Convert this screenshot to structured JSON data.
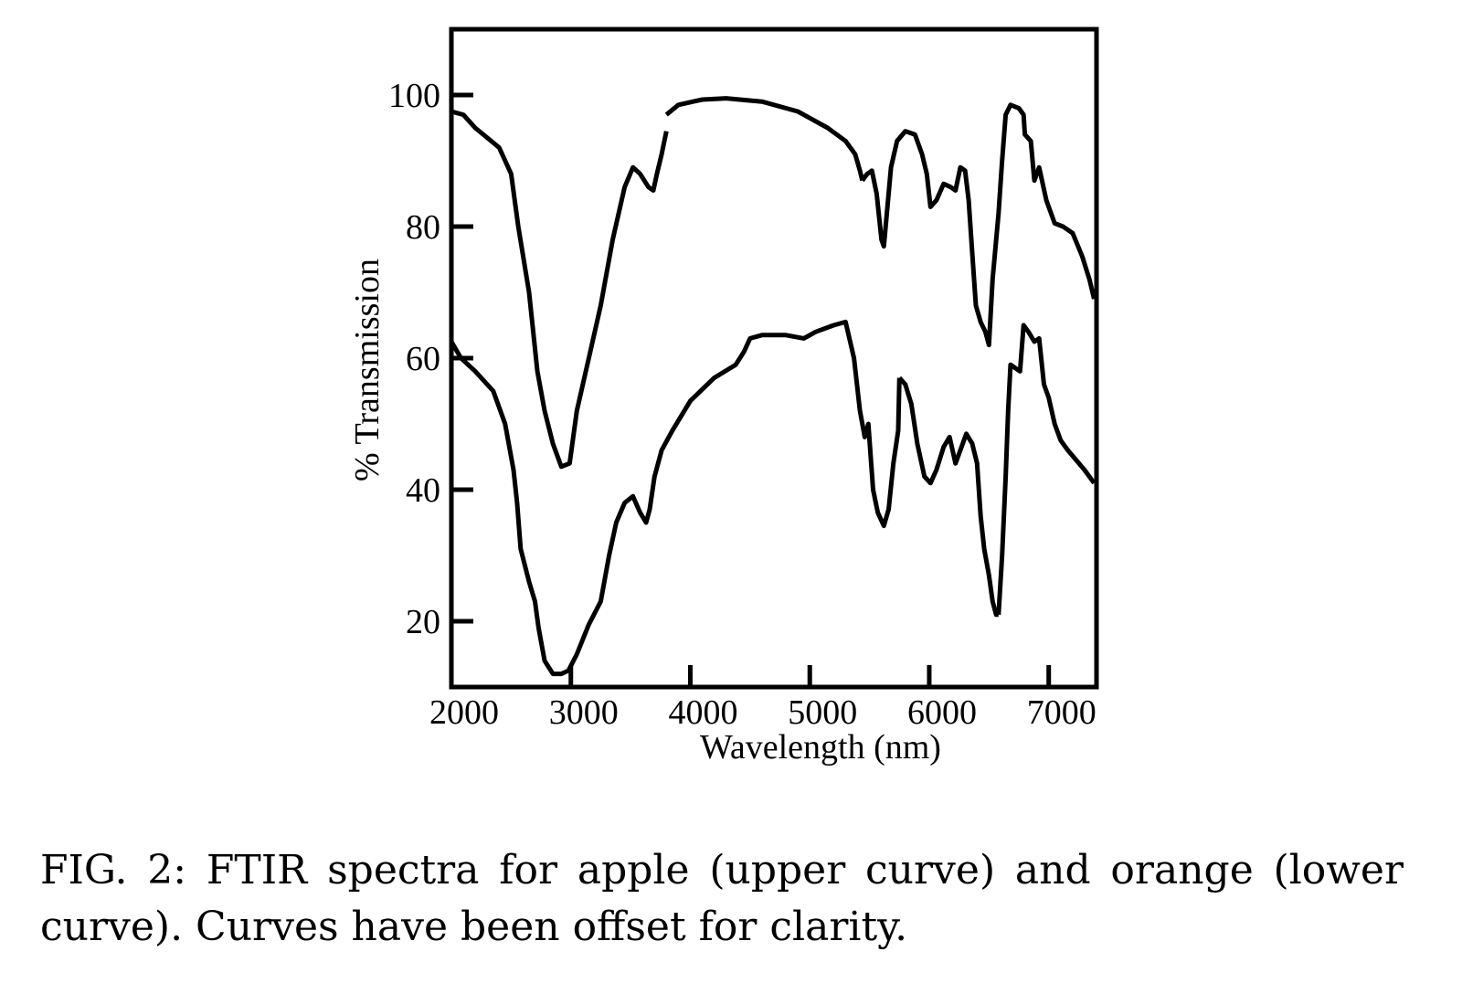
{
  "chart_data": {
    "type": "line",
    "title": "",
    "xlabel": "Wavelength (nm)",
    "ylabel": "% Transmission",
    "xlim": [
      2000,
      7400
    ],
    "ylim": [
      10,
      110
    ],
    "xticks": [
      2000,
      3000,
      4000,
      5000,
      6000,
      7000
    ],
    "yticks": [
      20,
      40,
      60,
      80,
      100
    ],
    "grid": false,
    "legend": "none",
    "series": [
      {
        "name": "apple (upper curve)",
        "segments": [
          [
            [
              2000,
              97.5
            ],
            [
              2100,
              97
            ],
            [
              2200,
              95
            ],
            [
              2400,
              92
            ],
            [
              2500,
              88
            ],
            [
              2560,
              80
            ],
            [
              2650,
              70
            ],
            [
              2720,
              58
            ],
            [
              2780,
              52
            ],
            [
              2850,
              47
            ],
            [
              2920,
              43.5
            ],
            [
              2990,
              44
            ],
            [
              3050,
              52
            ],
            [
              3150,
              60
            ],
            [
              3250,
              68
            ],
            [
              3350,
              78
            ],
            [
              3450,
              86
            ],
            [
              3520,
              89
            ],
            [
              3580,
              88
            ],
            [
              3650,
              86
            ],
            [
              3690,
              85.5
            ],
            [
              3720,
              88
            ],
            [
              3760,
              91
            ],
            [
              3800,
              94.5
            ]
          ],
          [
            [
              3800,
              97
            ],
            [
              3900,
              98.5
            ],
            [
              4100,
              99.3
            ],
            [
              4300,
              99.5
            ],
            [
              4600,
              99
            ],
            [
              4900,
              97.5
            ],
            [
              5150,
              95
            ],
            [
              5300,
              93
            ],
            [
              5380,
              91
            ],
            [
              5420,
              88.5
            ],
            [
              5440,
              87
            ]
          ],
          [
            [
              5440,
              87
            ],
            [
              5480,
              88
            ],
            [
              5520,
              88.5
            ],
            [
              5560,
              85
            ],
            [
              5600,
              78
            ],
            [
              5620,
              77
            ],
            [
              5650,
              83
            ],
            [
              5680,
              89
            ],
            [
              5730,
              93
            ],
            [
              5800,
              94.5
            ],
            [
              5880,
              94
            ],
            [
              5940,
              91
            ],
            [
              5980,
              88
            ],
            [
              6010,
              83
            ],
            [
              6060,
              84
            ],
            [
              6120,
              86.5
            ],
            [
              6180,
              86
            ],
            [
              6220,
              85.5
            ],
            [
              6260,
              89
            ],
            [
              6300,
              88.5
            ],
            [
              6330,
              84
            ],
            [
              6360,
              76
            ],
            [
              6390,
              68
            ],
            [
              6430,
              65.5
            ],
            [
              6470,
              64
            ],
            [
              6500,
              62
            ],
            [
              6530,
              72
            ],
            [
              6580,
              82
            ],
            [
              6610,
              90
            ],
            [
              6640,
              97
            ],
            [
              6680,
              98.5
            ],
            [
              6750,
              98
            ],
            [
              6790,
              97
            ],
            [
              6800,
              94
            ],
            [
              6850,
              93
            ],
            [
              6880,
              87
            ],
            [
              6920,
              89
            ],
            [
              6980,
              84
            ],
            [
              7050,
              80.5
            ],
            [
              7120,
              80
            ],
            [
              7200,
              79
            ],
            [
              7280,
              75.5
            ],
            [
              7340,
              72
            ],
            [
              7380,
              69
            ]
          ]
        ]
      },
      {
        "name": "orange (lower curve)",
        "segments": [
          [
            [
              2000,
              62.5
            ],
            [
              2080,
              60
            ],
            [
              2200,
              58
            ],
            [
              2350,
              55
            ],
            [
              2450,
              50
            ],
            [
              2520,
              43
            ],
            [
              2550,
              38
            ],
            [
              2580,
              31
            ],
            [
              2650,
              26
            ],
            [
              2700,
              23
            ],
            [
              2730,
              19
            ],
            [
              2780,
              14
            ],
            [
              2850,
              12
            ],
            [
              2920,
              12
            ],
            [
              2980,
              12.5
            ],
            [
              3050,
              15
            ],
            [
              3150,
              19.5
            ],
            [
              3250,
              23
            ],
            [
              3320,
              30
            ],
            [
              3380,
              35
            ],
            [
              3450,
              38
            ],
            [
              3520,
              39
            ],
            [
              3580,
              36.5
            ],
            [
              3630,
              35
            ],
            [
              3660,
              37
            ],
            [
              3700,
              42
            ],
            [
              3760,
              46
            ],
            [
              3850,
              49
            ],
            [
              4000,
              53.5
            ],
            [
              4200,
              57
            ],
            [
              4380,
              59
            ],
            [
              4450,
              61
            ],
            [
              4500,
              63
            ],
            [
              4600,
              63.5
            ],
            [
              4800,
              63.5
            ],
            [
              4950,
              63
            ],
            [
              5050,
              64
            ],
            [
              5200,
              65
            ],
            [
              5300,
              65.5
            ],
            [
              5370,
              60
            ],
            [
              5420,
              52
            ],
            [
              5460,
              48
            ],
            [
              5490,
              50
            ],
            [
              5530,
              40
            ],
            [
              5570,
              36.5
            ],
            [
              5620,
              34.5
            ],
            [
              5660,
              37
            ],
            [
              5700,
              44
            ],
            [
              5740,
              49
            ],
            [
              5750,
              57
            ]
          ],
          [
            [
              5750,
              57
            ],
            [
              5800,
              56
            ],
            [
              5850,
              53
            ],
            [
              5900,
              47
            ],
            [
              5960,
              42
            ],
            [
              6010,
              41
            ],
            [
              6060,
              43
            ],
            [
              6120,
              46.5
            ],
            [
              6170,
              48
            ],
            [
              6220,
              44
            ],
            [
              6260,
              46
            ],
            [
              6310,
              48.5
            ],
            [
              6360,
              47
            ],
            [
              6400,
              44
            ],
            [
              6430,
              36
            ],
            [
              6460,
              31
            ],
            [
              6500,
              27
            ],
            [
              6530,
              23
            ],
            [
              6560,
              21
            ],
            [
              6580,
              21
            ]
          ],
          [
            [
              6580,
              21
            ],
            [
              6610,
              30
            ],
            [
              6640,
              42
            ],
            [
              6660,
              52
            ],
            [
              6680,
              59
            ],
            [
              6720,
              58.5
            ],
            [
              6760,
              58
            ],
            [
              6790,
              65
            ],
            [
              6830,
              64
            ],
            [
              6880,
              62.5
            ],
            [
              6920,
              63
            ],
            [
              6960,
              56
            ],
            [
              7000,
              54
            ],
            [
              7050,
              50
            ],
            [
              7100,
              47.5
            ],
            [
              7160,
              46
            ],
            [
              7230,
              44.5
            ],
            [
              7300,
              43
            ],
            [
              7380,
              41
            ]
          ]
        ]
      }
    ]
  },
  "caption": "FIG. 2:  FTIR spectra for apple (upper curve) and orange (lower curve).  Curves have been offset for clarity.",
  "colors": {
    "line": "#000000",
    "background": "#ffffff"
  }
}
